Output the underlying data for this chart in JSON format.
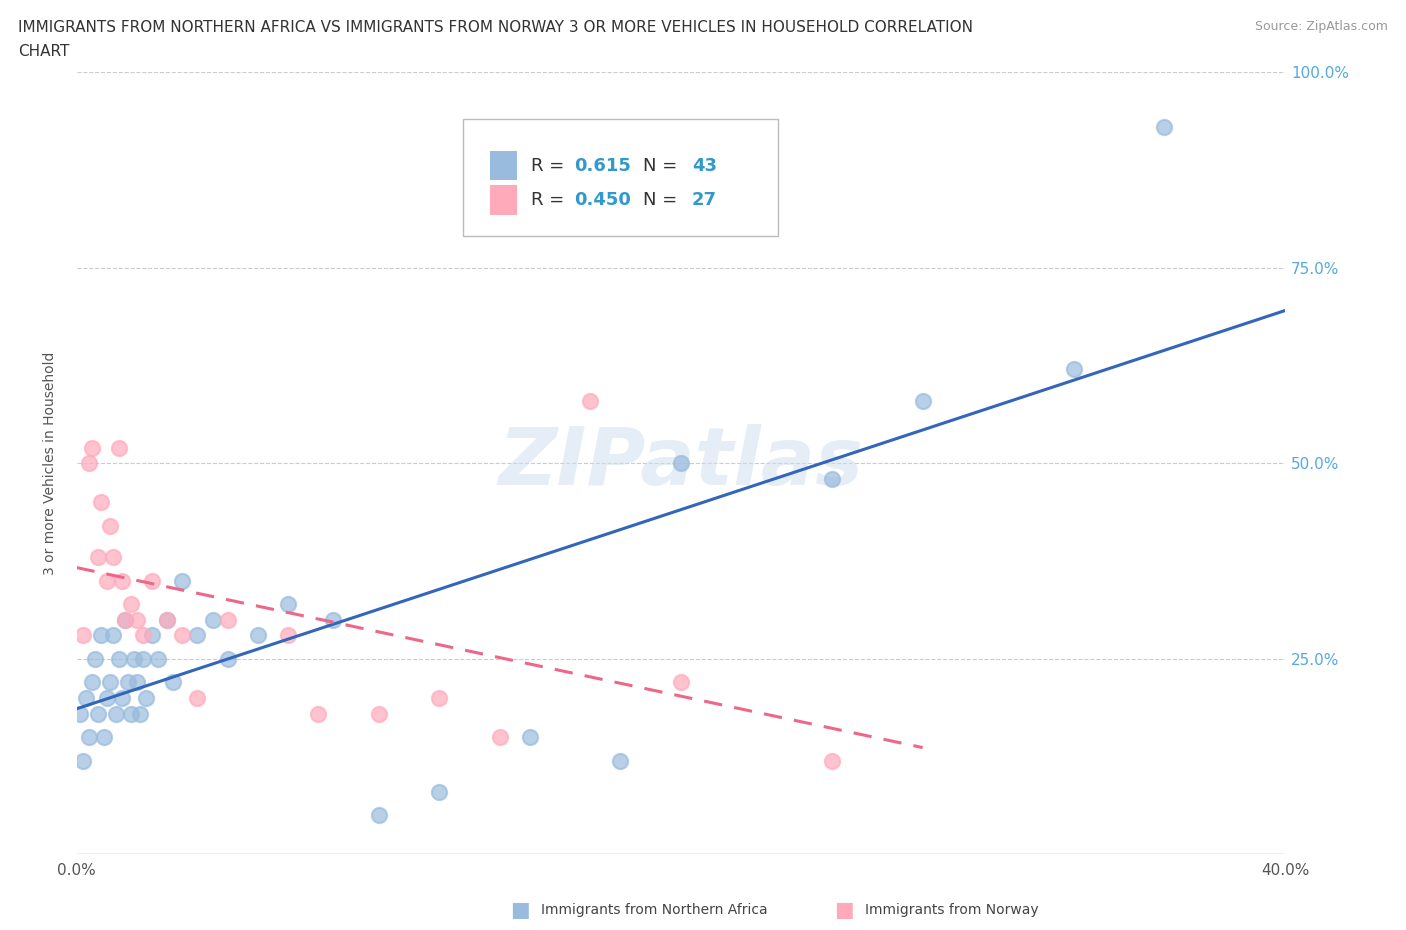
{
  "title_line1": "IMMIGRANTS FROM NORTHERN AFRICA VS IMMIGRANTS FROM NORWAY 3 OR MORE VEHICLES IN HOUSEHOLD CORRELATION",
  "title_line2": "CHART",
  "source": "Source: ZipAtlas.com",
  "ylabel_label": "3 or more Vehicles in Household",
  "legend1_r": "0.615",
  "legend1_n": "43",
  "legend2_r": "0.450",
  "legend2_n": "27",
  "blue_color": "#99BBDD",
  "pink_color": "#FFAABB",
  "blue_line_color": "#3366BB",
  "pink_line_color": "#EE6688",
  "pink_line_dash": true,
  "watermark": "ZIPatlas",
  "blue_scatter_x": [
    0.1,
    0.2,
    0.3,
    0.4,
    0.5,
    0.6,
    0.7,
    0.8,
    0.9,
    1.0,
    1.1,
    1.2,
    1.3,
    1.4,
    1.5,
    1.6,
    1.7,
    1.8,
    1.9,
    2.0,
    2.1,
    2.2,
    2.3,
    2.5,
    2.7,
    3.0,
    3.2,
    3.5,
    4.0,
    4.5,
    5.0,
    6.0,
    7.0,
    8.5,
    10.0,
    12.0,
    15.0,
    18.0,
    20.0,
    25.0,
    28.0,
    33.0,
    36.0
  ],
  "blue_scatter_y": [
    18.0,
    12.0,
    20.0,
    15.0,
    22.0,
    25.0,
    18.0,
    28.0,
    15.0,
    20.0,
    22.0,
    28.0,
    18.0,
    25.0,
    20.0,
    30.0,
    22.0,
    18.0,
    25.0,
    22.0,
    18.0,
    25.0,
    20.0,
    28.0,
    25.0,
    30.0,
    22.0,
    35.0,
    28.0,
    30.0,
    25.0,
    28.0,
    32.0,
    30.0,
    5.0,
    8.0,
    15.0,
    12.0,
    50.0,
    48.0,
    58.0,
    62.0,
    93.0
  ],
  "pink_scatter_x": [
    0.2,
    0.4,
    0.5,
    0.7,
    0.8,
    1.0,
    1.1,
    1.2,
    1.4,
    1.5,
    1.6,
    1.8,
    2.0,
    2.2,
    2.5,
    3.0,
    3.5,
    4.0,
    5.0,
    7.0,
    8.0,
    10.0,
    12.0,
    14.0,
    17.0,
    20.0,
    25.0
  ],
  "pink_scatter_y": [
    28.0,
    50.0,
    52.0,
    38.0,
    45.0,
    35.0,
    42.0,
    38.0,
    52.0,
    35.0,
    30.0,
    32.0,
    30.0,
    28.0,
    35.0,
    30.0,
    28.0,
    20.0,
    30.0,
    28.0,
    18.0,
    18.0,
    20.0,
    15.0,
    58.0,
    22.0,
    12.0
  ],
  "xlim": [
    0,
    40
  ],
  "ylim": [
    0,
    100
  ],
  "xtick_positions": [
    0,
    5,
    10,
    15,
    20,
    25,
    30,
    35,
    40
  ],
  "ytick_positions": [
    0,
    25,
    50,
    75,
    100
  ],
  "ytick_labels": [
    "",
    "25.0%",
    "50.0%",
    "75.0%",
    "100.0%"
  ],
  "xtick_labels": [
    "0.0%",
    "",
    "",
    "",
    "",
    "",
    "",
    "",
    "40.0%"
  ]
}
